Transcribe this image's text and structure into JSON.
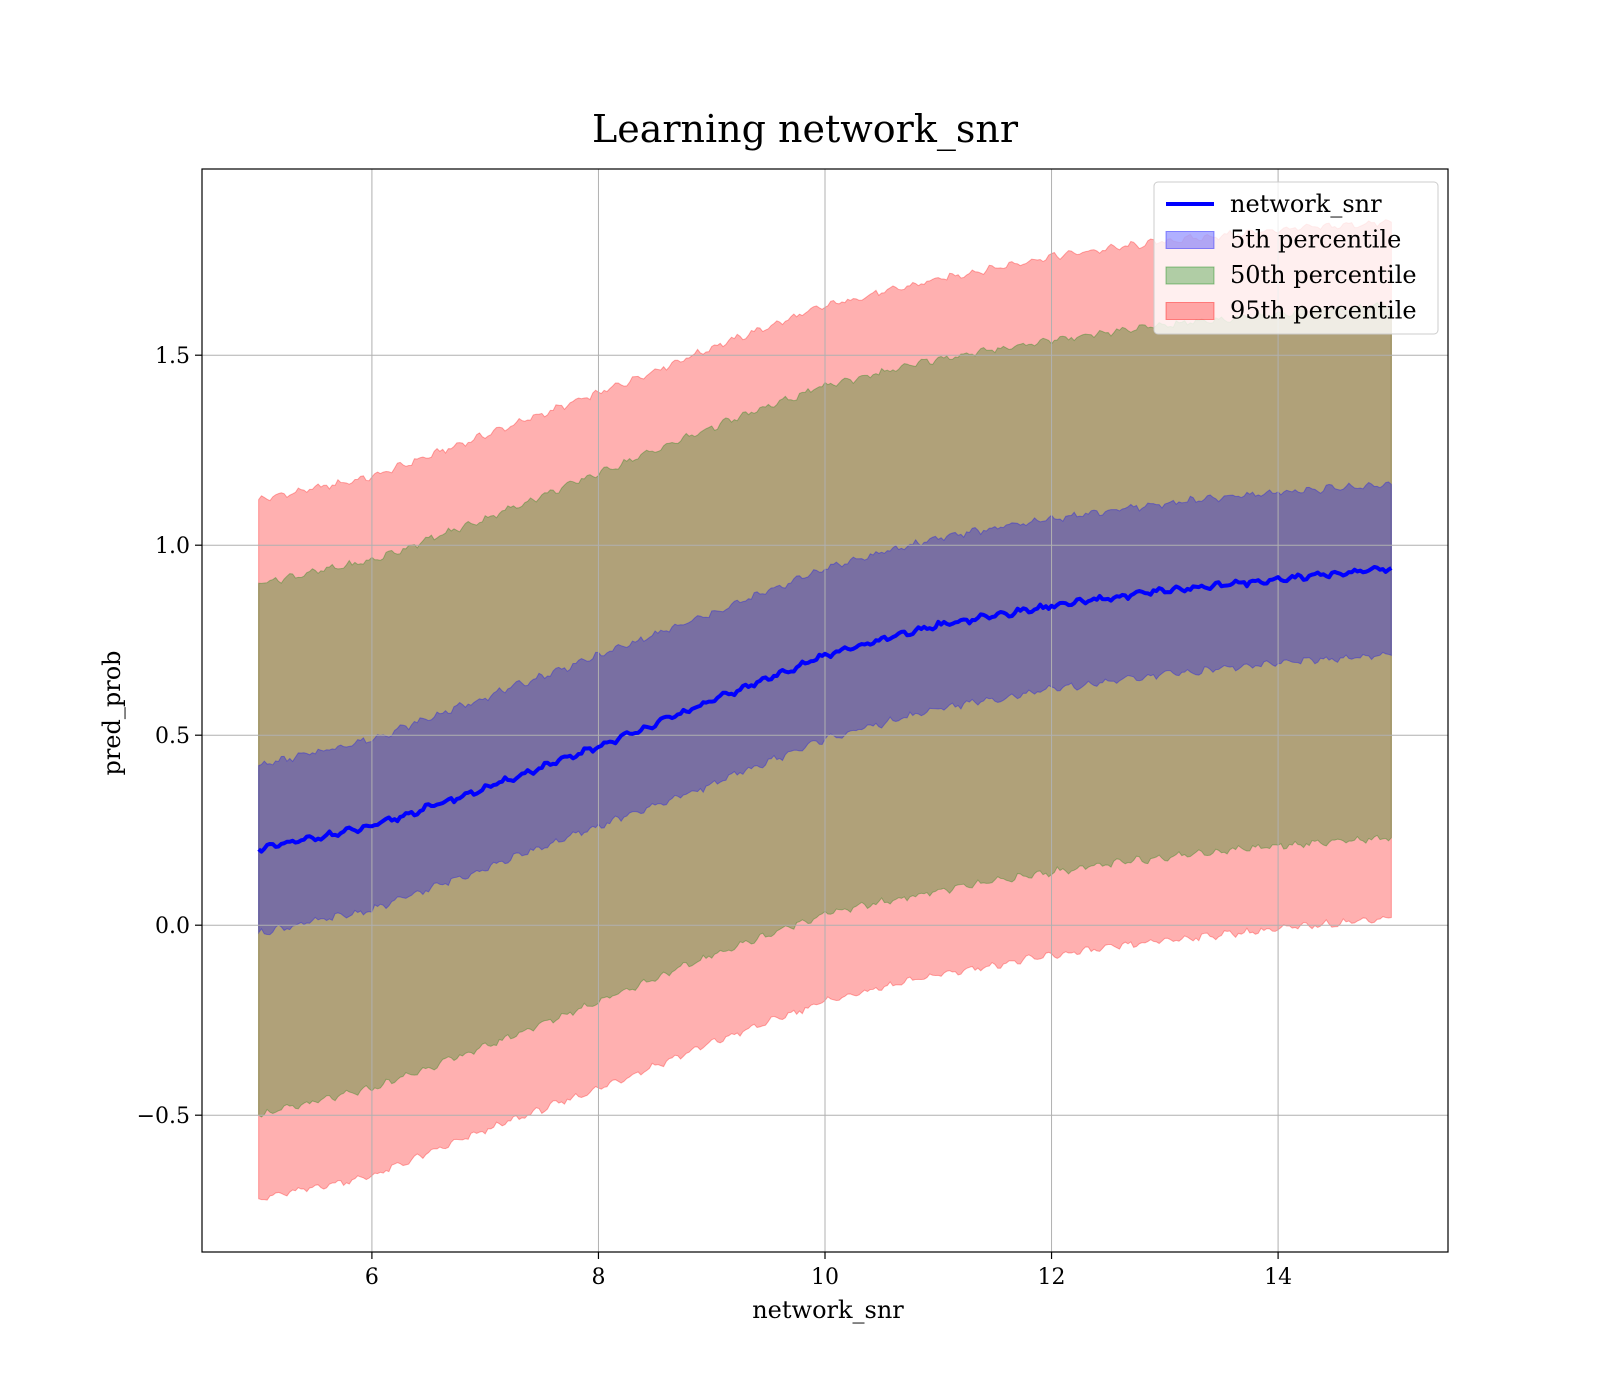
{
  "chart_data": {
    "type": "line",
    "title": "Learning network_snr",
    "xlabel": "network_snr",
    "ylabel": "pred_prob",
    "xlim": [
      4.5,
      15.5
    ],
    "ylim": [
      -0.86,
      1.99
    ],
    "xticks": [
      6,
      8,
      10,
      12,
      14
    ],
    "yticks": [
      -0.5,
      0.0,
      0.5,
      1.0,
      1.5
    ],
    "ytick_labels": [
      "−0.5",
      "0.0",
      "0.5",
      "1.0",
      "1.5"
    ],
    "grid": true,
    "legend_position": "top-right",
    "x": [
      5,
      6,
      7,
      8,
      9,
      10,
      11,
      12,
      13,
      14,
      15
    ],
    "series": [
      {
        "name": "network_snr",
        "kind": "line",
        "color": "#0000ff",
        "values": [
          0.2,
          0.26,
          0.36,
          0.47,
          0.59,
          0.71,
          0.79,
          0.84,
          0.88,
          0.91,
          0.94
        ]
      },
      {
        "name": "5th percentile",
        "kind": "band",
        "color": "#0000ff",
        "lower": [
          -0.02,
          0.04,
          0.15,
          0.26,
          0.37,
          0.49,
          0.57,
          0.62,
          0.66,
          0.69,
          0.71
        ],
        "upper": [
          0.42,
          0.49,
          0.6,
          0.71,
          0.82,
          0.94,
          1.02,
          1.07,
          1.11,
          1.14,
          1.16
        ]
      },
      {
        "name": "50th percentile",
        "kind": "band",
        "color": "#008000",
        "lower": [
          -0.5,
          -0.43,
          -0.32,
          -0.2,
          -0.08,
          0.03,
          0.09,
          0.14,
          0.18,
          0.21,
          0.23
        ],
        "upper": [
          0.9,
          0.96,
          1.07,
          1.19,
          1.31,
          1.42,
          1.49,
          1.54,
          1.58,
          1.61,
          1.63
        ]
      },
      {
        "name": "95th percentile",
        "kind": "band",
        "color": "#ff0000",
        "lower": [
          -0.72,
          -0.66,
          -0.54,
          -0.43,
          -0.31,
          -0.2,
          -0.13,
          -0.08,
          -0.04,
          -0.01,
          0.02
        ],
        "upper": [
          1.12,
          1.18,
          1.29,
          1.4,
          1.52,
          1.63,
          1.7,
          1.76,
          1.8,
          1.83,
          1.85
        ]
      }
    ]
  }
}
